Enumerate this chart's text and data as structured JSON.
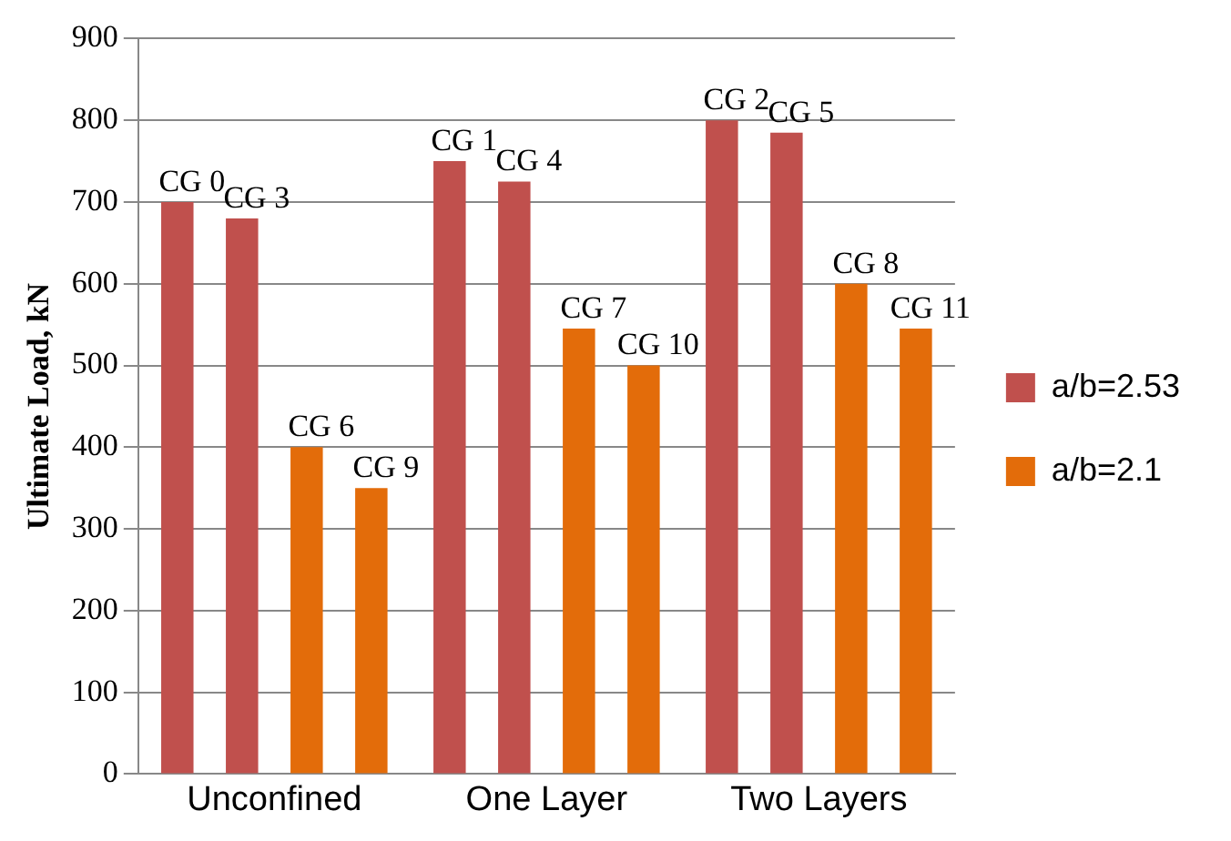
{
  "chart_data": {
    "type": "bar",
    "ylabel": "Ultimate Load, kN",
    "categories": [
      "Unconfined",
      "One Layer",
      "Two Layers"
    ],
    "series": [
      {
        "name": "a/b=2.53",
        "color": "#c0504d",
        "values": [
          700,
          750,
          800
        ],
        "value_labels": [
          "CG 0",
          "CG 1",
          "CG 2"
        ]
      },
      {
        "color": "#c0504d",
        "values": [
          680,
          725,
          785
        ],
        "value_labels": [
          "CG 3",
          "CG 4",
          "CG 5"
        ]
      },
      {
        "name": "a/b=2.1",
        "color": "#e36c0a",
        "values": [
          400,
          545,
          600
        ],
        "value_labels": [
          "CG 6",
          "CG 7",
          "CG 8"
        ]
      },
      {
        "color": "#e36c0a",
        "values": [
          350,
          500,
          545
        ],
        "value_labels": [
          "CG 9",
          "CG 10",
          "CG 11"
        ]
      }
    ],
    "ylim": [
      0,
      900
    ],
    "yticks": [
      0,
      100,
      200,
      300,
      400,
      500,
      600,
      700,
      800,
      900
    ],
    "grid": "y",
    "legend": "right"
  }
}
